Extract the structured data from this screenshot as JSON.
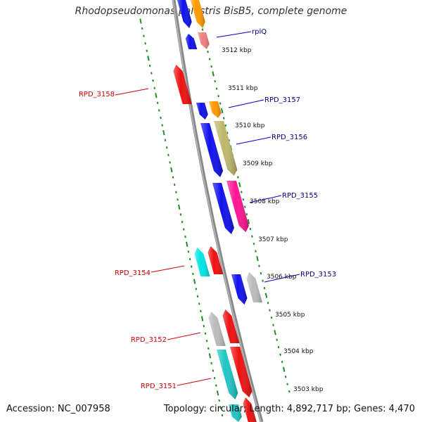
{
  "title": "Rhodopseudomonas palustris BisB5, complete genome",
  "footer": {
    "accession": "Accession: NC_007958",
    "topology": "Topology: circular; Length: 4,892,717 bp; Genes: 4,470"
  },
  "kbp_labels": [
    "3512 kbp",
    "3511 kbp",
    "3510 kbp",
    "3509 kbp",
    "3508 kbp",
    "3507 kbp",
    "3506 kbp",
    "3505 kbp",
    "3504 kbp",
    "3503 kbp"
  ],
  "gene_labels": [
    {
      "text": "rplQ",
      "color": "#00008b"
    },
    {
      "text": "RPD_3158",
      "color": "#cc0000"
    },
    {
      "text": "RPD_3157",
      "color": "#00008b"
    },
    {
      "text": "RPD_3156",
      "color": "#00008b"
    },
    {
      "text": "RPD_3155",
      "color": "#00008b"
    },
    {
      "text": "RPD_3154",
      "color": "#cc0000"
    },
    {
      "text": "RPD_3153",
      "color": "#00008b"
    },
    {
      "text": "RPD_3152",
      "color": "#cc0000"
    },
    {
      "text": "RPD_3151",
      "color": "#cc0000"
    }
  ],
  "colors": {
    "blue": "#1010ee",
    "red": "#ee1111",
    "orange": "#ff9900",
    "pink": "#f08080",
    "olive": "#bdb76b",
    "magenta": "#ff1493",
    "cyan": "#00e5e5",
    "teal": "#20c5c5",
    "gray": "#bbbbbb",
    "backbone": "#888888",
    "ruler": "#228b22"
  }
}
